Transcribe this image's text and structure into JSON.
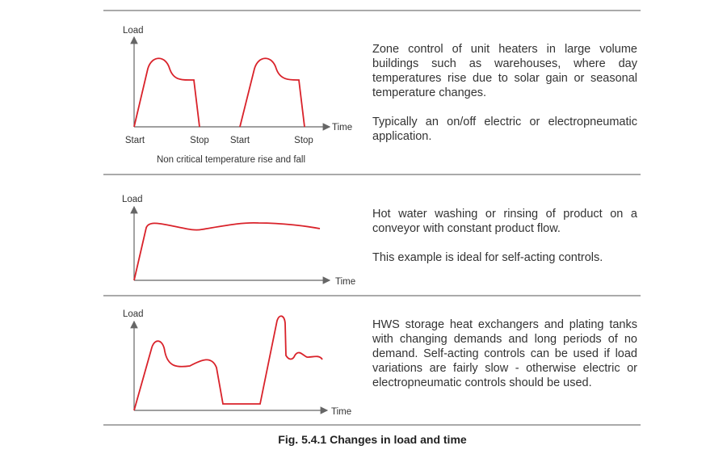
{
  "panels": [
    {
      "load_label": "Load",
      "time_label": "Time",
      "x_labels": [
        "Start",
        "Stop",
        "Start",
        "Stop"
      ],
      "subcaption": "Non critical temperature rise and fall",
      "paragraphs": [
        "Zone control of unit heaters in large volume buildings such as warehouses, where day temperatures rise due to solar gain or seasonal temperature changes.",
        "Typically an on/off electric or electropneumatic application."
      ]
    },
    {
      "load_label": "Load",
      "time_label": "Time",
      "paragraphs": [
        "Hot water washing or rinsing of product on a conveyor with constant product flow.",
        "This example is ideal for self-acting controls."
      ]
    },
    {
      "load_label": "Load",
      "time_label": "Time",
      "paragraphs": [
        "HWS storage heat exchangers and plating tanks with changing demands and long periods of no demand. Self-acting controls can be used if load variations are fairly slow - otherwise electric or electropneumatic controls should be used."
      ]
    }
  ],
  "caption": "Fig. 5.4.1 Changes in load and time"
}
